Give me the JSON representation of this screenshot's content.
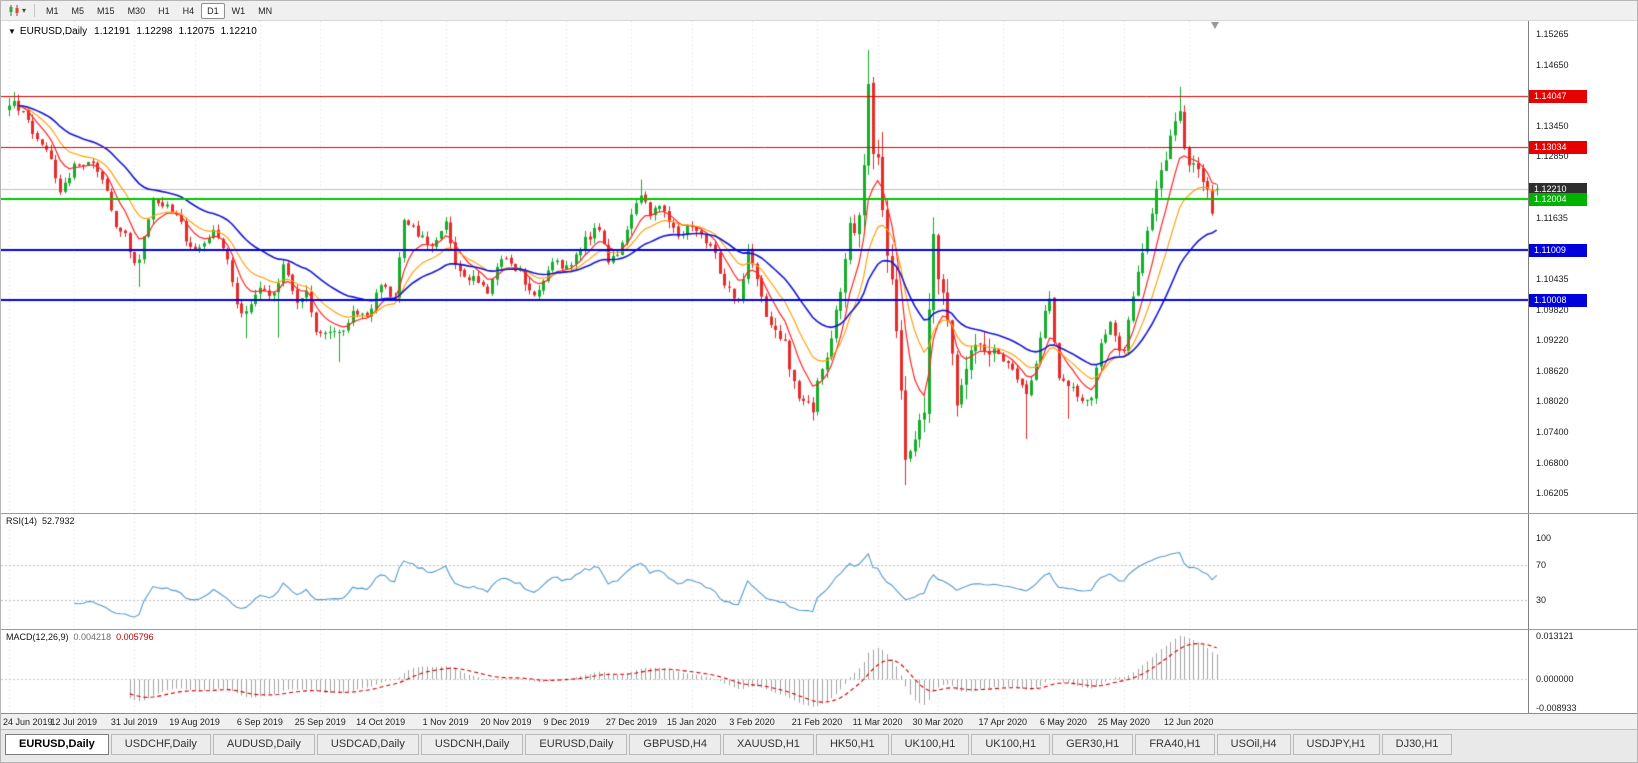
{
  "icons": {
    "chart_type": "candlestick-chart-icon",
    "dropdown_caret": "▾",
    "title_marker": "▼"
  },
  "toolbar": {
    "timeframes": [
      "M1",
      "M5",
      "M15",
      "M30",
      "H1",
      "H4",
      "D1",
      "W1",
      "MN"
    ],
    "active_timeframe": "D1"
  },
  "main_chart": {
    "title": {
      "marker": "▼",
      "symbol": "EURUSD,Daily",
      "open": "1.12191",
      "high": "1.12298",
      "low": "1.12075",
      "close": "1.12210"
    },
    "y_ticks": [
      "1.15265",
      "1.14650",
      "1.13450",
      "1.12850",
      "1.11635",
      "1.10435",
      "1.09820",
      "1.09220",
      "1.08620",
      "1.08020",
      "1.07400",
      "1.06800",
      "1.06205"
    ],
    "price_tags": [
      {
        "text": "1.14047",
        "bg": "#e60000"
      },
      {
        "text": "1.13034",
        "bg": "#e60000"
      },
      {
        "text": "1.12210",
        "bg": "#2e2e2e"
      },
      {
        "text": "1.12004",
        "bg": "#00b200"
      },
      {
        "text": "1.11009",
        "bg": "#0000dc"
      },
      {
        "text": "1.10008",
        "bg": "#0000dc"
      }
    ]
  },
  "chart_data": {
    "type": "candlestick",
    "symbol": "EURUSD",
    "timeframe": "Daily",
    "candle_count": 261,
    "visible_price_range": {
      "top": 1.15265,
      "bottom": 1.06205
    },
    "x_ticks": [
      {
        "i": 0,
        "label": "24 Jun 2019"
      },
      {
        "i": 14,
        "label": "12 Jul 2019"
      },
      {
        "i": 27,
        "label": "31 Jul 2019"
      },
      {
        "i": 40,
        "label": "19 Aug 2019"
      },
      {
        "i": 54,
        "label": "6 Sep 2019"
      },
      {
        "i": 67,
        "label": "25 Sep 2019"
      },
      {
        "i": 80,
        "label": "14 Oct 2019"
      },
      {
        "i": 94,
        "label": "1 Nov 2019"
      },
      {
        "i": 107,
        "label": "20 Nov 2019"
      },
      {
        "i": 120,
        "label": "9 Dec 2019"
      },
      {
        "i": 134,
        "label": "27 Dec 2019"
      },
      {
        "i": 147,
        "label": "15 Jan 2020"
      },
      {
        "i": 160,
        "label": "3 Feb 2020"
      },
      {
        "i": 174,
        "label": "21 Feb 2020"
      },
      {
        "i": 187,
        "label": "11 Mar 2020"
      },
      {
        "i": 200,
        "label": "30 Mar 2020"
      },
      {
        "i": 214,
        "label": "17 Apr 2020"
      },
      {
        "i": 227,
        "label": "6 May 2020"
      },
      {
        "i": 240,
        "label": "25 May 2020"
      },
      {
        "i": 254,
        "label": "12 Jun 2020"
      }
    ],
    "close_path_anchors": [
      [
        0,
        1.1378
      ],
      [
        1,
        1.1392
      ],
      [
        3,
        1.1366
      ],
      [
        6,
        1.1322
      ],
      [
        9,
        1.1285
      ],
      [
        11,
        1.121
      ],
      [
        14,
        1.1268
      ],
      [
        18,
        1.1276
      ],
      [
        21,
        1.1215
      ],
      [
        23,
        1.1148
      ],
      [
        25,
        1.1128
      ],
      [
        27,
        1.1078
      ],
      [
        28,
        1.1086
      ],
      [
        31,
        1.1198
      ],
      [
        34,
        1.1192
      ],
      [
        36,
        1.1172
      ],
      [
        39,
        1.11
      ],
      [
        41,
        1.1102
      ],
      [
        44,
        1.1143
      ],
      [
        47,
        1.1088
      ],
      [
        49,
        1.0992
      ],
      [
        51,
        1.0974
      ],
      [
        54,
        1.1028
      ],
      [
        57,
        1.1008
      ],
      [
        59,
        1.107
      ],
      [
        62,
        1.1002
      ],
      [
        64,
        1.1018
      ],
      [
        66,
        1.0942
      ],
      [
        69,
        1.094
      ],
      [
        71,
        1.0934
      ],
      [
        74,
        1.0978
      ],
      [
        77,
        1.0972
      ],
      [
        80,
        1.103
      ],
      [
        83,
        1.1002
      ],
      [
        85,
        1.1156
      ],
      [
        88,
        1.1132
      ],
      [
        91,
        1.1102
      ],
      [
        94,
        1.1164
      ],
      [
        96,
        1.1072
      ],
      [
        98,
        1.1052
      ],
      [
        101,
        1.1036
      ],
      [
        103,
        1.1022
      ],
      [
        105,
        1.1072
      ],
      [
        107,
        1.1076
      ],
      [
        110,
        1.1062
      ],
      [
        112,
        1.1016
      ],
      [
        114,
        1.1018
      ],
      [
        117,
        1.108
      ],
      [
        120,
        1.1066
      ],
      [
        122,
        1.109
      ],
      [
        124,
        1.112
      ],
      [
        127,
        1.1146
      ],
      [
        129,
        1.108
      ],
      [
        131,
        1.109
      ],
      [
        134,
        1.1174
      ],
      [
        136,
        1.1212
      ],
      [
        138,
        1.1172
      ],
      [
        140,
        1.119
      ],
      [
        142,
        1.1156
      ],
      [
        144,
        1.1122
      ],
      [
        147,
        1.115
      ],
      [
        149,
        1.1134
      ],
      [
        152,
        1.1092
      ],
      [
        154,
        1.1026
      ],
      [
        157,
        1.1002
      ],
      [
        159,
        1.1094
      ],
      [
        160,
        1.1062
      ],
      [
        162,
        1.1002
      ],
      [
        164,
        1.0946
      ],
      [
        167,
        1.0916
      ],
      [
        169,
        1.0832
      ],
      [
        171,
        1.0796
      ],
      [
        173,
        1.0786
      ],
      [
        174,
        1.0848
      ],
      [
        176,
        1.0882
      ],
      [
        179,
        1.1026
      ],
      [
        181,
        1.1134
      ],
      [
        183,
        1.1172
      ],
      [
        184,
        1.1284
      ],
      [
        185,
        1.1448
      ],
      [
        186,
        1.1282
      ],
      [
        187,
        1.127
      ],
      [
        188,
        1.1186
      ],
      [
        189,
        1.1106
      ],
      [
        191,
        1.0956
      ],
      [
        192,
        1.0802
      ],
      [
        193,
        1.0694
      ],
      [
        195,
        1.0728
      ],
      [
        197,
        1.079
      ],
      [
        199,
        1.1138
      ],
      [
        200,
        1.1048
      ],
      [
        202,
        1.0966
      ],
      [
        204,
        1.0806
      ],
      [
        206,
        1.0862
      ],
      [
        208,
        1.0932
      ],
      [
        211,
        1.0912
      ],
      [
        214,
        1.0876
      ],
      [
        216,
        1.0864
      ],
      [
        219,
        1.0822
      ],
      [
        221,
        1.0872
      ],
      [
        223,
        1.0982
      ],
      [
        224,
        1.1008
      ],
      [
        226,
        1.0842
      ],
      [
        228,
        1.0836
      ],
      [
        230,
        1.0812
      ],
      [
        233,
        1.0806
      ],
      [
        235,
        1.0918
      ],
      [
        237,
        1.0952
      ],
      [
        239,
        1.09
      ],
      [
        240,
        1.0902
      ],
      [
        242,
        1.101
      ],
      [
        244,
        1.1098
      ],
      [
        245,
        1.1136
      ],
      [
        247,
        1.1232
      ],
      [
        249,
        1.129
      ],
      [
        251,
        1.1342
      ],
      [
        252,
        1.1374
      ],
      [
        253,
        1.1302
      ],
      [
        254,
        1.1256
      ],
      [
        256,
        1.1262
      ],
      [
        258,
        1.1208
      ],
      [
        259,
        1.1178
      ],
      [
        260,
        1.1221
      ]
    ],
    "spikes": [
      {
        "i": 0,
        "h": 1.14
      },
      {
        "i": 1,
        "h": 1.1412
      },
      {
        "i": 28,
        "l": 1.1027
      },
      {
        "i": 51,
        "l": 1.0926
      },
      {
        "i": 58,
        "l": 1.0927
      },
      {
        "i": 71,
        "l": 1.0879
      },
      {
        "i": 136,
        "h": 1.1239
      },
      {
        "i": 173,
        "l": 1.0778
      },
      {
        "i": 185,
        "h": 1.1495
      },
      {
        "i": 188,
        "h": 1.1333
      },
      {
        "i": 189,
        "l": 1.1055
      },
      {
        "i": 193,
        "l": 1.0636
      },
      {
        "i": 199,
        "h": 1.1148
      },
      {
        "i": 219,
        "l": 1.0727
      },
      {
        "i": 224,
        "h": 1.1019
      },
      {
        "i": 228,
        "l": 1.0767
      },
      {
        "i": 252,
        "h": 1.1422
      },
      {
        "i": 259,
        "l": 1.1168
      }
    ],
    "last_candle": {
      "o": 1.12191,
      "h": 1.12298,
      "l": 1.12075,
      "c": 1.1221
    },
    "horizontal_lines": [
      {
        "price": 1.14047,
        "color": "#e60000",
        "width": 1
      },
      {
        "price": 1.13034,
        "color": "#e60000",
        "width": 1
      },
      {
        "price": 1.12004,
        "color": "#00c400",
        "width": 2
      },
      {
        "price": 1.11009,
        "color": "#0000e6",
        "width": 2
      },
      {
        "price": 1.10008,
        "color": "#0000e6",
        "width": 2
      }
    ],
    "bid_line": {
      "price": 1.1221,
      "color": "#bfbfbf"
    },
    "moving_averages": [
      {
        "period": 7,
        "color": "#ff2626",
        "width": 1.2
      },
      {
        "period": 14,
        "color": "#ff9d00",
        "width": 1.1
      },
      {
        "period": 30,
        "color": "#1717d4",
        "width": 1.6
      }
    ],
    "candle_up_color": "#17ad2c",
    "candle_down_color": "#e62b2b"
  },
  "rsi_panel": {
    "name": "RSI(14)",
    "value": "52.7932",
    "axis_labels": [
      {
        "value": 100,
        "text": "100"
      },
      {
        "value": 70,
        "text": "70"
      },
      {
        "value": 30,
        "text": "30"
      }
    ],
    "levels": [
      70,
      30
    ],
    "line_color": "#569bd2"
  },
  "macd_panel": {
    "name": "MACD(12,26,9)",
    "macd_value": "0.004218",
    "signal_value": "0.005796",
    "axis_labels": {
      "top": "0.013121",
      "zero": "0.000000",
      "bottom": "-0.008933"
    },
    "histogram_color": "#a3a3a3",
    "signal_color": "#d40000"
  },
  "tabs": [
    {
      "label": "EURUSD,Daily",
      "active": true
    },
    {
      "label": "USDCHF,Daily",
      "active": false
    },
    {
      "label": "AUDUSD,Daily",
      "active": false
    },
    {
      "label": "USDCAD,Daily",
      "active": false
    },
    {
      "label": "USDCNH,Daily",
      "active": false
    },
    {
      "label": "EURUSD,Daily",
      "active": false
    },
    {
      "label": "GBPUSD,H4",
      "active": false
    },
    {
      "label": "XAUUSD,H1",
      "active": false
    },
    {
      "label": "HK50,H1",
      "active": false
    },
    {
      "label": "UK100,H1",
      "active": false
    },
    {
      "label": "UK100,H1",
      "active": false
    },
    {
      "label": "GER30,H1",
      "active": false
    },
    {
      "label": "FRA40,H1",
      "active": false
    },
    {
      "label": "USOil,H4",
      "active": false
    },
    {
      "label": "USDJPY,H1",
      "active": false
    },
    {
      "label": "DJ30,H1",
      "active": false
    }
  ]
}
